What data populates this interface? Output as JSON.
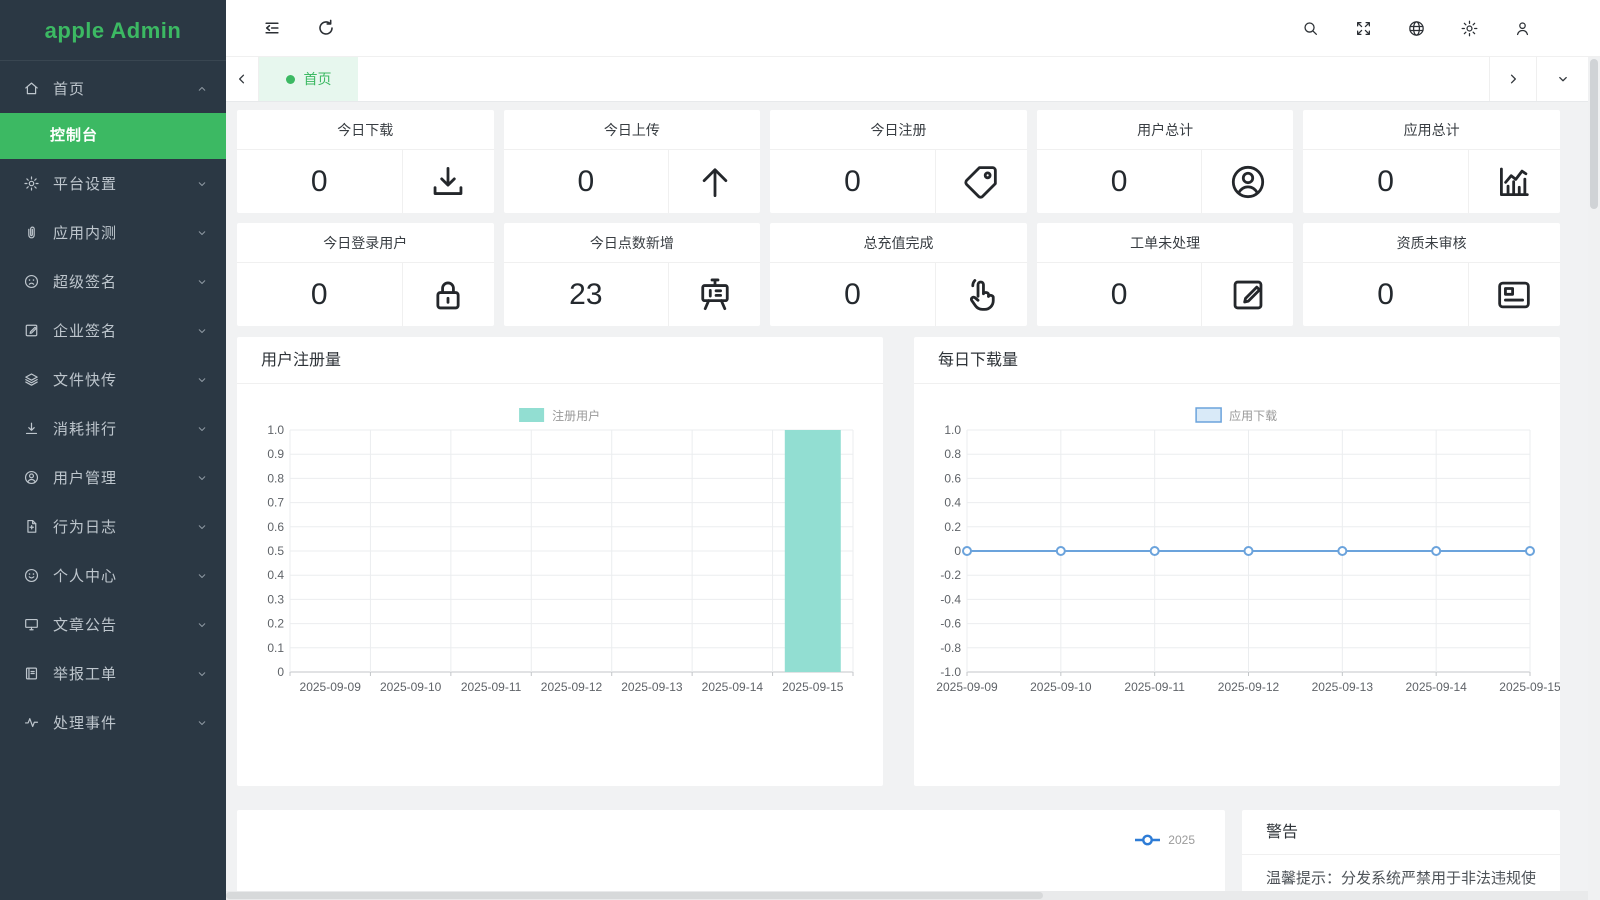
{
  "app": {
    "title": "apple Admin"
  },
  "colors": {
    "primary": "#3cb963",
    "sidebar_bg": "#2b3844",
    "bar": "#92ded2",
    "line": "#6ba3dc",
    "line_legend_fill": "#d9eaf8",
    "year": "#2e7cd6"
  },
  "topbar": {
    "left_icons": [
      "collapse-menu",
      "refresh"
    ],
    "right_icons": [
      "search",
      "fullscreen",
      "language-globe",
      "settings-gear",
      "user"
    ]
  },
  "tabbar": {
    "tabs": [
      {
        "label": "首页",
        "active": true
      }
    ]
  },
  "sidebar": {
    "items": [
      {
        "label": "首页",
        "icon": "home",
        "expanded": true,
        "children": [
          {
            "label": "控制台",
            "active": true
          }
        ]
      },
      {
        "label": "平台设置",
        "icon": "gear"
      },
      {
        "label": "应用内测",
        "icon": "paperclip"
      },
      {
        "label": "超级签名",
        "icon": "face-frown"
      },
      {
        "label": "企业签名",
        "icon": "edit-square"
      },
      {
        "label": "文件快传",
        "icon": "layers"
      },
      {
        "label": "消耗排行",
        "icon": "download"
      },
      {
        "label": "用户管理",
        "icon": "user-circle"
      },
      {
        "label": "行为日志",
        "icon": "file-plus"
      },
      {
        "label": "个人中心",
        "icon": "face-smile"
      },
      {
        "label": "文章公告",
        "icon": "monitor"
      },
      {
        "label": "举报工单",
        "icon": "notebook"
      },
      {
        "label": "处理事件",
        "icon": "activity"
      }
    ]
  },
  "stats": {
    "rows": [
      [
        {
          "label": "今日下载",
          "value": "0",
          "icon": "download-tray"
        },
        {
          "label": "今日上传",
          "value": "0",
          "icon": "arrow-up"
        },
        {
          "label": "今日注册",
          "value": "0",
          "icon": "tag"
        },
        {
          "label": "用户总计",
          "value": "0",
          "icon": "user-circle"
        },
        {
          "label": "应用总计",
          "value": "0",
          "icon": "histogram"
        }
      ],
      [
        {
          "label": "今日登录用户",
          "value": "0",
          "icon": "lock"
        },
        {
          "label": "今日点数新增",
          "value": "23",
          "icon": "presentation"
        },
        {
          "label": "总充值完成",
          "value": "0",
          "icon": "hand-click"
        },
        {
          "label": "工单未处理",
          "value": "0",
          "icon": "edit-square"
        },
        {
          "label": "资质未审核",
          "value": "0",
          "icon": "id-card"
        }
      ]
    ]
  },
  "chart_data": [
    {
      "type": "bar",
      "title": "用户注册量",
      "legend": [
        "注册用户"
      ],
      "legend_position": "top-center",
      "categories": [
        "2025-09-09",
        "2025-09-10",
        "2025-09-11",
        "2025-09-12",
        "2025-09-13",
        "2025-09-14",
        "2025-09-15"
      ],
      "values": [
        0,
        0,
        0,
        0,
        0,
        0,
        1
      ],
      "ylim": [
        0,
        1
      ],
      "ytick_step": 0.1,
      "grid": true,
      "color": "#92ded2"
    },
    {
      "type": "line",
      "title": "每日下载量",
      "legend": [
        "应用下载"
      ],
      "legend_position": "top-center",
      "categories": [
        "2025-09-09",
        "2025-09-10",
        "2025-09-11",
        "2025-09-12",
        "2025-09-13",
        "2025-09-14",
        "2025-09-15"
      ],
      "values": [
        0,
        0,
        0,
        0,
        0,
        0,
        0
      ],
      "ylim": [
        -1,
        1
      ],
      "ytick_step": 0.2,
      "grid": true,
      "marker": "hollow-circle",
      "color": "#6ba3dc"
    },
    {
      "type": "line",
      "title": "",
      "legend": [
        "2025"
      ],
      "legend_position": "top-right",
      "note": "chart clipped by viewport bottom, only legend visible",
      "color": "#2e7cd6"
    }
  ],
  "bottom": {
    "warning": {
      "title": "警告",
      "text": "温馨提示：分发系统严禁用于非法违规使用,作为"
    }
  }
}
